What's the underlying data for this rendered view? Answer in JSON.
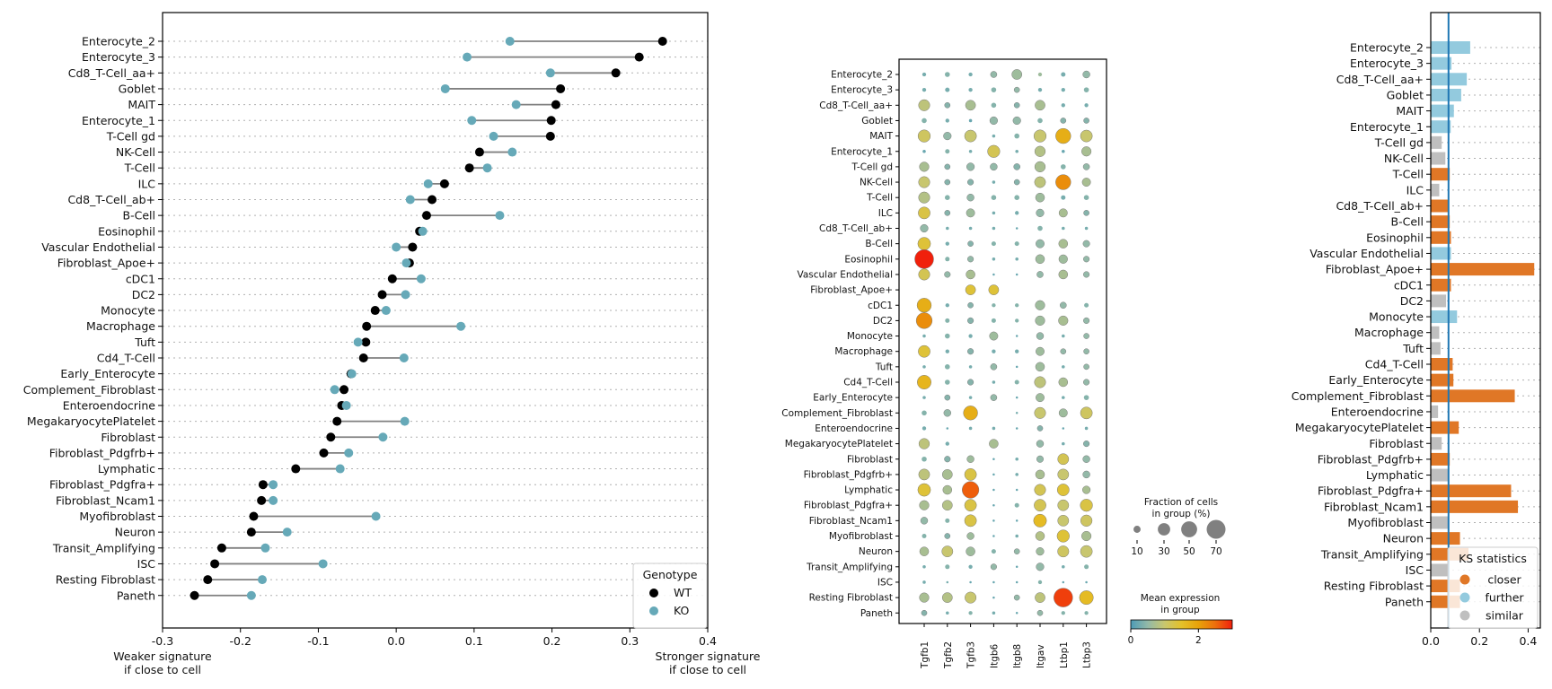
{
  "chart_data": [
    {
      "id": "dumbbell",
      "type": "scatter",
      "title": "",
      "xlabel_left": [
        "Weaker signature",
        "if close to cell"
      ],
      "xlabel_right": [
        "Stronger signature",
        "if close to cell"
      ],
      "xlim": [
        -0.3,
        0.4
      ],
      "xticks": [
        -0.3,
        -0.2,
        -0.1,
        0.0,
        0.1,
        0.2,
        0.3,
        0.4
      ],
      "xtick_labels": [
        "-0.3",
        "-0.2",
        "-0.1",
        "0.0",
        "0.1",
        "0.2",
        "0.3",
        "0.4"
      ],
      "grid": "horizontal dotted",
      "legend": {
        "title": "Genotype",
        "placement": "bottom-right",
        "entries": [
          {
            "label": "WT",
            "color": "#000000"
          },
          {
            "label": "KO",
            "color": "#66a9b8"
          }
        ]
      },
      "categories": [
        "Enterocyte_2",
        "Enterocyte_3",
        "Cd8_T-Cell_aa+",
        "Goblet",
        "MAIT",
        "Enterocyte_1",
        "T-Cell gd",
        "NK-Cell",
        "T-Cell",
        "ILC",
        "Cd8_T-Cell_ab+",
        "B-Cell",
        "Eosinophil",
        "Vascular Endothelial",
        "Fibroblast_Apoe+",
        "cDC1",
        "DC2",
        "Monocyte",
        "Macrophage",
        "Tuft",
        "Cd4_T-Cell",
        "Early_Enterocyte",
        "Complement_Fibroblast",
        "Enteroendocrine",
        "MegakaryocytePlatelet",
        "Fibroblast",
        "Fibroblast_Pdgfrb+ ",
        "Lymphatic",
        "Fibroblast_Pdgfra+",
        "Fibroblast_Ncam1",
        "Myofibroblast",
        "Neuron",
        "Transit_Amplifying",
        "ISC",
        "Resting Fibroblast",
        "Paneth"
      ],
      "series": [
        {
          "name": "WT",
          "values": [
            0.342,
            0.312,
            0.282,
            0.211,
            0.205,
            0.199,
            0.198,
            0.107,
            0.094,
            0.062,
            0.046,
            0.039,
            0.03,
            0.021,
            0.017,
            -0.005,
            -0.018,
            -0.027,
            -0.038,
            -0.039,
            -0.042,
            -0.058,
            -0.067,
            -0.07,
            -0.076,
            -0.084,
            -0.093,
            -0.129,
            -0.171,
            -0.173,
            -0.183,
            -0.186,
            -0.224,
            -0.233,
            -0.242,
            -0.259
          ]
        },
        {
          "name": "KO",
          "values": [
            0.146,
            0.091,
            0.198,
            0.063,
            0.154,
            0.097,
            0.125,
            0.149,
            0.117,
            0.041,
            0.018,
            0.133,
            0.034,
            0.0,
            0.013,
            0.032,
            0.012,
            -0.013,
            0.083,
            -0.049,
            0.01,
            -0.057,
            -0.079,
            -0.064,
            0.011,
            -0.017,
            -0.061,
            -0.072,
            -0.158,
            -0.158,
            -0.026,
            -0.14,
            -0.168,
            -0.094,
            -0.172,
            -0.186
          ]
        }
      ]
    },
    {
      "id": "dotplot",
      "type": "scatter",
      "subtype": "dotplot",
      "genes": [
        "Tgfb1",
        "Tgfb2",
        "Tgfb3",
        "Itgb6",
        "Itgb8",
        "Itgav",
        "Ltbp1",
        "Ltbp3"
      ],
      "cells": [
        "Enterocyte_2",
        "Enterocyte_3",
        "Cd8_T-Cell_aa+",
        "Goblet",
        "MAIT",
        "Enterocyte_1",
        "T-Cell gd",
        "NK-Cell",
        "T-Cell",
        "ILC",
        "Cd8_T-Cell_ab+",
        "B-Cell",
        "Eosinophil",
        "Vascular Endothelial",
        "Fibroblast_Apoe+",
        "cDC1",
        "DC2",
        "Monocyte",
        "Macrophage",
        "Tuft",
        "Cd4_T-Cell",
        "Early_Enterocyte",
        "Complement_Fibroblast",
        "Enteroendocrine",
        "MegakaryocytePlatelet",
        "Fibroblast",
        "Fibroblast_Pdgfrb+ ",
        "Lymphatic",
        "Fibroblast_Pdgfra+",
        "Fibroblast_Ncam1",
        "Myofibroblast",
        "Neuron",
        "Transit_Amplifying",
        "ISC",
        "Resting Fibroblast",
        "Paneth"
      ],
      "fraction_pct": [
        [
          3,
          5,
          3,
          8,
          20,
          3,
          4,
          10
        ],
        [
          3,
          4,
          3,
          5,
          6,
          3,
          3,
          5
        ],
        [
          25,
          6,
          20,
          5,
          6,
          20,
          3,
          3
        ],
        [
          5,
          3,
          2,
          12,
          12,
          5,
          6,
          6
        ],
        [
          30,
          12,
          28,
          2,
          5,
          30,
          45,
          28
        ],
        [
          2,
          4,
          2,
          30,
          2,
          22,
          2,
          18
        ],
        [
          18,
          6,
          12,
          10,
          8,
          22,
          5,
          8
        ],
        [
          25,
          6,
          7,
          2,
          6,
          24,
          45,
          14
        ],
        [
          25,
          5,
          10,
          5,
          5,
          16,
          4,
          5
        ],
        [
          28,
          6,
          14,
          2,
          3,
          12,
          14,
          6
        ],
        [
          12,
          2,
          2,
          2,
          1,
          5,
          2,
          2
        ],
        [
          32,
          3,
          6,
          4,
          4,
          14,
          16,
          9
        ],
        [
          70,
          4,
          7,
          2,
          2,
          16,
          15,
          7
        ],
        [
          25,
          7,
          16,
          1,
          1,
          8,
          16,
          7
        ],
        [
          0,
          0,
          20,
          20,
          0,
          0,
          0,
          0
        ],
        [
          40,
          3,
          6,
          3,
          3,
          18,
          8,
          4
        ],
        [
          50,
          4,
          7,
          4,
          3,
          18,
          18,
          7
        ],
        [
          2,
          5,
          3,
          14,
          1,
          10,
          2,
          6
        ],
        [
          28,
          3,
          7,
          3,
          3,
          14,
          6,
          6
        ],
        [
          2,
          5,
          2,
          8,
          1,
          16,
          2,
          6
        ],
        [
          38,
          5,
          7,
          2,
          4,
          25,
          16,
          7
        ],
        [
          2,
          6,
          2,
          8,
          1,
          14,
          2,
          5
        ],
        [
          5,
          10,
          40,
          0,
          1,
          25,
          14,
          28
        ],
        [
          3,
          1,
          2,
          2,
          1,
          6,
          1,
          2
        ],
        [
          22,
          3,
          0,
          16,
          0,
          10,
          2,
          7
        ],
        [
          5,
          7,
          10,
          1,
          2,
          9,
          24,
          10
        ],
        [
          24,
          20,
          28,
          1,
          2,
          16,
          24,
          10
        ],
        [
          32,
          16,
          55,
          1,
          1,
          25,
          28,
          12
        ],
        [
          18,
          20,
          28,
          1,
          4,
          28,
          24,
          30
        ],
        [
          10,
          4,
          28,
          1,
          1,
          33,
          24,
          26
        ],
        [
          4,
          6,
          10,
          1,
          2,
          16,
          30,
          18
        ],
        [
          16,
          24,
          16,
          4,
          6,
          12,
          25,
          28
        ],
        [
          2,
          4,
          3,
          7,
          1,
          12,
          2,
          4
        ],
        [
          2,
          1,
          1,
          1,
          1,
          3,
          1,
          1
        ],
        [
          18,
          20,
          25,
          1,
          6,
          20,
          70,
          38
        ],
        [
          6,
          2,
          3,
          2,
          1,
          6,
          3,
          3
        ]
      ],
      "mean_expression": [
        [
          0.3,
          0.4,
          0.3,
          0.5,
          0.6,
          0.6,
          0.3,
          0.5
        ],
        [
          0.3,
          0.3,
          0.3,
          0.4,
          0.5,
          0.3,
          0.3,
          0.4
        ],
        [
          0.9,
          0.4,
          0.7,
          0.4,
          0.4,
          0.7,
          0.3,
          0.3
        ],
        [
          0.4,
          0.3,
          0.2,
          0.5,
          0.5,
          0.4,
          0.4,
          0.4
        ],
        [
          1.1,
          0.5,
          1.0,
          0.3,
          0.4,
          1.0,
          1.8,
          1.0
        ],
        [
          0.2,
          0.4,
          0.3,
          1.2,
          0.3,
          0.8,
          0.2,
          0.7
        ],
        [
          0.7,
          0.4,
          0.5,
          0.5,
          0.4,
          0.7,
          0.4,
          0.5
        ],
        [
          1.0,
          0.4,
          0.4,
          0.3,
          0.4,
          0.9,
          2.2,
          0.7
        ],
        [
          0.8,
          0.4,
          0.5,
          0.4,
          0.4,
          0.6,
          0.3,
          0.4
        ],
        [
          1.3,
          0.4,
          0.6,
          0.3,
          0.3,
          0.5,
          0.7,
          0.4
        ],
        [
          0.5,
          0.3,
          0.3,
          0.3,
          0.2,
          0.4,
          0.3,
          0.3
        ],
        [
          1.4,
          0.3,
          0.4,
          0.4,
          0.4,
          0.5,
          0.7,
          0.5
        ],
        [
          3.0,
          0.4,
          0.5,
          0.3,
          0.3,
          0.6,
          0.6,
          0.5
        ],
        [
          1.2,
          0.5,
          0.7,
          0.2,
          0.2,
          0.5,
          0.7,
          0.5
        ],
        [
          0,
          0,
          1.4,
          1.4,
          0,
          0,
          0,
          0
        ],
        [
          1.8,
          0.3,
          0.4,
          0.4,
          0.4,
          0.6,
          0.5,
          0.4
        ],
        [
          2.2,
          0.4,
          0.4,
          0.4,
          0.4,
          0.6,
          0.7,
          0.5
        ],
        [
          0.3,
          0.4,
          0.3,
          0.6,
          0.2,
          0.5,
          0.3,
          0.5
        ],
        [
          1.4,
          0.3,
          0.4,
          0.3,
          0.3,
          0.6,
          0.5,
          0.5
        ],
        [
          0.3,
          0.4,
          0.3,
          0.5,
          0.2,
          0.6,
          0.3,
          0.5
        ],
        [
          1.7,
          0.4,
          0.4,
          0.3,
          0.4,
          0.9,
          0.7,
          0.5
        ],
        [
          0.3,
          0.4,
          0.3,
          0.5,
          0.2,
          0.6,
          0.3,
          0.4
        ],
        [
          0.4,
          0.5,
          1.8,
          0,
          0.3,
          1.0,
          0.6,
          1.1
        ],
        [
          0.3,
          0.2,
          0.3,
          0.3,
          0.2,
          0.4,
          0.2,
          0.3
        ],
        [
          0.9,
          0.3,
          0,
          0.7,
          0,
          0.5,
          0.3,
          0.4
        ],
        [
          0.4,
          0.4,
          0.6,
          0.2,
          0.3,
          0.5,
          1.2,
          0.5
        ],
        [
          0.9,
          0.7,
          1.3,
          0.2,
          0.3,
          0.7,
          1.0,
          0.5
        ],
        [
          1.4,
          0.7,
          2.6,
          0.2,
          0.2,
          1.2,
          1.4,
          0.7
        ],
        [
          0.7,
          0.8,
          1.3,
          0.2,
          0.4,
          1.2,
          1.0,
          1.3
        ],
        [
          0.5,
          0.4,
          1.3,
          0.2,
          0.2,
          1.6,
          1.0,
          1.1
        ],
        [
          0.4,
          0.4,
          0.6,
          0.2,
          0.3,
          0.8,
          1.4,
          0.7
        ],
        [
          0.7,
          1.0,
          0.6,
          0.4,
          0.5,
          0.6,
          1.1,
          1.0
        ],
        [
          0.3,
          0.4,
          0.3,
          0.5,
          0.2,
          0.5,
          0.3,
          0.4
        ],
        [
          0.3,
          0.3,
          0.2,
          0.2,
          0.2,
          0.4,
          0.2,
          0.2
        ],
        [
          0.7,
          0.8,
          1.0,
          0.2,
          0.5,
          0.9,
          2.8,
          1.6
        ],
        [
          0.4,
          0.3,
          0.4,
          0.3,
          0.2,
          0.5,
          0.4,
          0.4
        ]
      ],
      "size_legend": {
        "title": [
          "Fraction of cells",
          "in group (%)"
        ],
        "values": [
          10,
          30,
          50,
          70
        ],
        "labels": [
          "10",
          "30",
          "50",
          "70"
        ]
      },
      "color_legend": {
        "title": [
          "Mean expression",
          "in group"
        ],
        "range": [
          0,
          3
        ],
        "ticks": [
          0,
          2
        ],
        "tick_labels": [
          "0",
          "2"
        ],
        "colormap": [
          "#4d9bb6",
          "#93b9a8",
          "#c8c66e",
          "#e4c12a",
          "#e8a20a",
          "#ed6e0c",
          "#f0200c"
        ]
      }
    },
    {
      "id": "ks_bars",
      "type": "bar",
      "orientation": "horizontal",
      "xlim": [
        0,
        0.45
      ],
      "xticks": [
        0.0,
        0.2,
        0.4
      ],
      "xtick_labels": [
        "0.0",
        "0.2",
        "0.4"
      ],
      "reference_line": 0.073,
      "grid": "horizontal dotted",
      "categories": [
        "Enterocyte_2",
        "Enterocyte_3",
        "Cd8_T-Cell_aa+",
        "Goblet",
        "MAIT",
        "Enterocyte_1",
        "T-Cell gd",
        "NK-Cell",
        "T-Cell",
        "ILC",
        "Cd8_T-Cell_ab+",
        "B-Cell",
        "Eosinophil",
        "Vascular Endothelial",
        "Fibroblast_Apoe+",
        "cDC1",
        "DC2",
        "Monocyte",
        "Macrophage",
        "Tuft",
        "Cd4_T-Cell",
        "Early_Enterocyte",
        "Complement_Fibroblast",
        "Enteroendocrine",
        "MegakaryocytePlatelet",
        "Fibroblast",
        "Fibroblast_Pdgfrb+",
        "Lymphatic",
        "Fibroblast_Pdgfra+",
        "Fibroblast_Ncam1",
        "Myofibroblast",
        "Neuron",
        "Transit_Amplifying",
        "ISC",
        "Resting Fibroblast",
        "Paneth"
      ],
      "values": [
        0.162,
        0.085,
        0.148,
        0.125,
        0.095,
        0.082,
        0.045,
        0.06,
        0.078,
        0.035,
        0.075,
        0.078,
        0.083,
        0.083,
        0.425,
        0.083,
        0.063,
        0.108,
        0.035,
        0.04,
        0.09,
        0.093,
        0.345,
        0.03,
        0.115,
        0.045,
        0.078,
        0.072,
        0.33,
        0.358,
        0.072,
        0.12,
        0.155,
        0.072,
        0.12,
        0.12
      ],
      "status": [
        "further",
        "further",
        "further",
        "further",
        "further",
        "further",
        "similar",
        "similar",
        "closer",
        "similar",
        "closer",
        "closer",
        "closer",
        "further",
        "closer",
        "closer",
        "similar",
        "further",
        "similar",
        "similar",
        "closer",
        "closer",
        "closer",
        "similar",
        "closer",
        "similar",
        "closer",
        "similar",
        "closer",
        "closer",
        "similar",
        "closer",
        "closer",
        "similar",
        "closer",
        "closer"
      ],
      "legend": {
        "title": "KS statistics",
        "placement": "bottom-right",
        "entries": [
          {
            "label": "closer",
            "key": "closer",
            "color": "#e07726"
          },
          {
            "label": "further",
            "key": "further",
            "color": "#93cade"
          },
          {
            "label": "similar",
            "key": "similar",
            "color": "#bfbfbf"
          }
        ]
      }
    }
  ]
}
